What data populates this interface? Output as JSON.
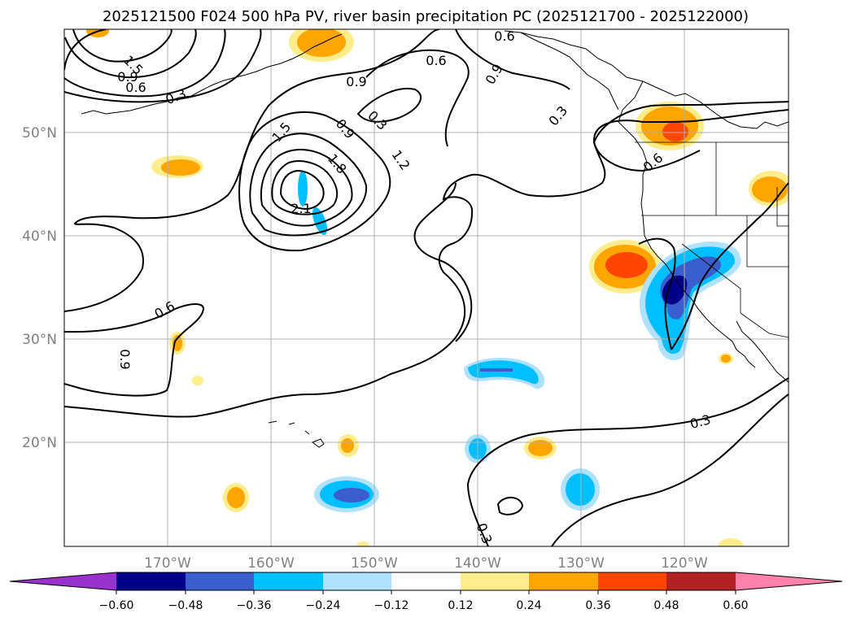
{
  "title": "2025121500 F024 500 hPa PV, river basin precipitation PC (2025121700 - 2025122000)",
  "map": {
    "lon_labels": [
      "170°W",
      "160°W",
      "150°W",
      "140°W",
      "130°W",
      "120°W"
    ],
    "lat_labels": [
      "50°N",
      "40°N",
      "30°N",
      "20°N"
    ],
    "contour_labels": [
      "1.5",
      "0.9",
      "0.6",
      "0.3",
      "0.9",
      "0.6",
      "0.9",
      "0.6",
      "0.3",
      "1.5",
      "0.9",
      "1.8",
      "1.2",
      "2.1",
      "0.6",
      "0.9",
      "0.3",
      "0.6",
      "0.3",
      "0.3"
    ]
  },
  "colorbar": {
    "tick_labels": [
      "−0.60",
      "−0.48",
      "−0.36",
      "−0.24",
      "−0.12",
      "0.12",
      "0.24",
      "0.36",
      "0.48",
      "0.60"
    ],
    "colors": [
      "#9932cc",
      "#00008b",
      "#3a5fcd",
      "#00bfff",
      "#b0e2ff",
      "#ffffff",
      "#ffec8b",
      "#ffa500",
      "#ff4500",
      "#b22222",
      "#ff82ab"
    ]
  }
}
